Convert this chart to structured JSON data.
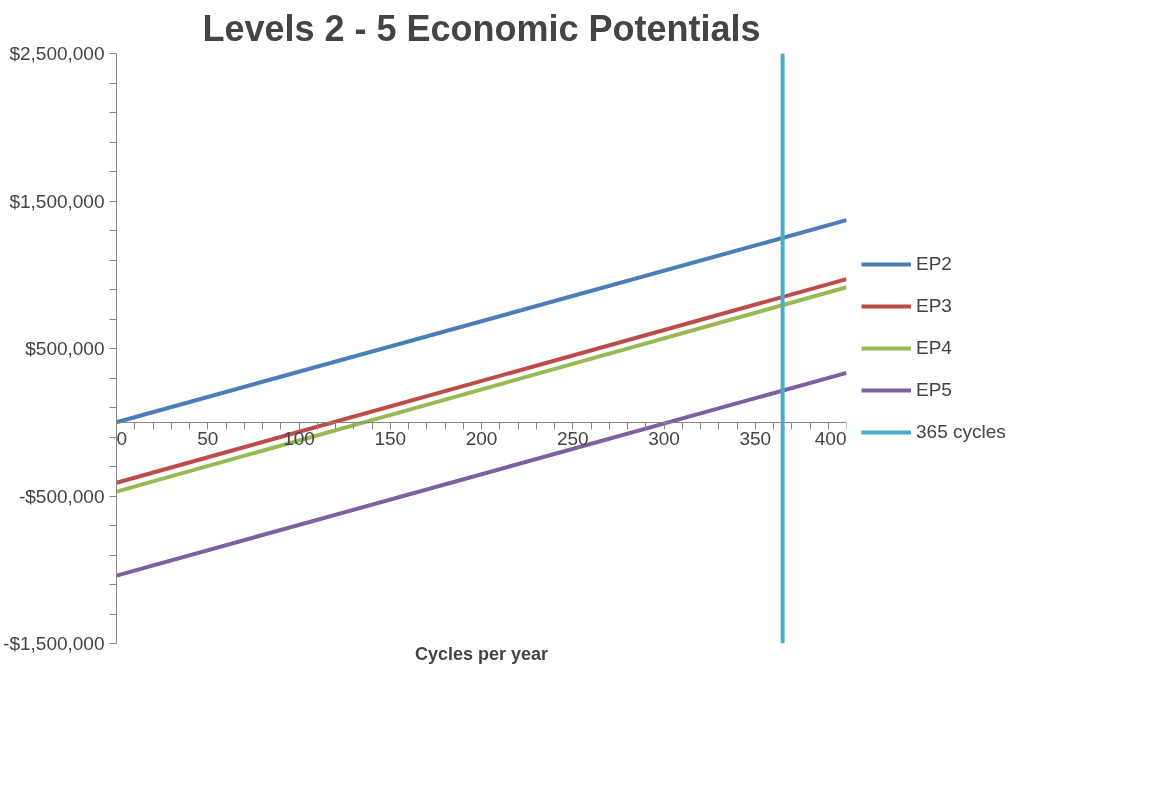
{
  "chart_data": {
    "type": "line",
    "title": "Levels 2 - 5 Economic Potentials",
    "xlabel": "Cycles per year",
    "series": [
      {
        "name": "EP2",
        "color": "#4a7ebb",
        "x": [
          0,
          400
        ],
        "values": [
          0,
          1370000
        ]
      },
      {
        "name": "EP3",
        "color": "#be4b48",
        "x": [
          0,
          400
        ],
        "values": [
          -410000,
          970000
        ]
      },
      {
        "name": "EP4",
        "color": "#98b954",
        "x": [
          0,
          400
        ],
        "values": [
          -470000,
          915000
        ]
      },
      {
        "name": "EP5",
        "color": "#7d60a0",
        "x": [
          0,
          400
        ],
        "values": [
          -1040000,
          335000
        ]
      },
      {
        "name": "365 cycles",
        "color": "#4bacc6",
        "x": [
          365,
          365
        ],
        "values": [
          -1500000,
          2500000
        ]
      }
    ],
    "xlim": [
      0,
      400
    ],
    "ylim": [
      -1500000,
      2500000
    ],
    "xticks": [
      0,
      {
        "value": 10,
        "label": null
      },
      {
        "value": 20,
        "label": null
      },
      {
        "value": 30,
        "label": null
      },
      {
        "value": 40,
        "label": null
      },
      50,
      {
        "value": 60,
        "label": null
      },
      {
        "value": 70,
        "label": null
      },
      {
        "value": 80,
        "label": null
      },
      {
        "value": 90,
        "label": null
      },
      100,
      {
        "value": 110,
        "label": null
      },
      {
        "value": 120,
        "label": null
      },
      {
        "value": 130,
        "label": null
      },
      {
        "value": 140,
        "label": null
      },
      150,
      {
        "value": 160,
        "label": null
      },
      {
        "value": 170,
        "label": null
      },
      {
        "value": 180,
        "label": null
      },
      {
        "value": 190,
        "label": null
      },
      200,
      {
        "value": 210,
        "label": null
      },
      {
        "value": 220,
        "label": null
      },
      {
        "value": 230,
        "label": null
      },
      {
        "value": 240,
        "label": null
      },
      250,
      {
        "value": 260,
        "label": null
      },
      {
        "value": 270,
        "label": null
      },
      {
        "value": 280,
        "label": null
      },
      {
        "value": 290,
        "label": null
      },
      300,
      {
        "value": 310,
        "label": null
      },
      {
        "value": 320,
        "label": null
      },
      {
        "value": 330,
        "label": null
      },
      {
        "value": 340,
        "label": null
      },
      350,
      {
        "value": 360,
        "label": null
      },
      {
        "value": 370,
        "label": null
      },
      {
        "value": 380,
        "label": null
      },
      {
        "value": 390,
        "label": null
      },
      400
    ],
    "yticks": [
      {
        "value": -1500000,
        "label": "-$1,500,000"
      },
      {
        "value": -1300000,
        "label": null
      },
      {
        "value": -1100000,
        "label": null
      },
      {
        "value": -900000,
        "label": null
      },
      {
        "value": -700000,
        "label": null
      },
      {
        "value": -500000,
        "label": "-$500,000"
      },
      {
        "value": -300000,
        "label": null
      },
      {
        "value": -100000,
        "label": null
      },
      {
        "value": 100000,
        "label": null
      },
      {
        "value": 300000,
        "label": null
      },
      {
        "value": 500000,
        "label": "$500,000"
      },
      {
        "value": 700000,
        "label": null
      },
      {
        "value": 900000,
        "label": null
      },
      {
        "value": 1100000,
        "label": null
      },
      {
        "value": 1300000,
        "label": null
      },
      {
        "value": 1500000,
        "label": "$1,500,000"
      },
      {
        "value": 1700000,
        "label": null
      },
      {
        "value": 1900000,
        "label": null
      },
      {
        "value": 2100000,
        "label": null
      },
      {
        "value": 2300000,
        "label": null
      },
      {
        "value": 2500000,
        "label": "$2,500,000"
      }
    ],
    "grid": false,
    "legend": "right",
    "marker": "none",
    "line_style": "solid"
  }
}
